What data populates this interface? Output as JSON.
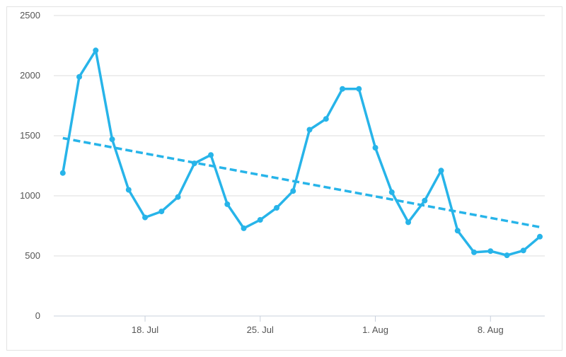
{
  "chart_data": {
    "type": "line",
    "title": "",
    "xlabel": "",
    "ylabel": "",
    "ylim": [
      0,
      2500
    ],
    "yticks": [
      0,
      500,
      1000,
      1500,
      2000,
      2500
    ],
    "xticks": [
      {
        "label": "18. Jul",
        "day": 18
      },
      {
        "label": "25. Jul",
        "day": 25
      },
      {
        "label": "1. Aug",
        "day": 32
      },
      {
        "label": "8. Aug",
        "day": 39
      }
    ],
    "grid": true,
    "legend": "none",
    "colors": {
      "series": "#27b4e9",
      "trend": "#27b4e9",
      "grid": "#dcdcdc",
      "axis": "#c8d0dc"
    },
    "series": [
      {
        "values": [
          {
            "day": 13,
            "y": 1190
          },
          {
            "day": 14,
            "y": 1990
          },
          {
            "day": 15,
            "y": 2210
          },
          {
            "day": 16,
            "y": 1470
          },
          {
            "day": 17,
            "y": 1050
          },
          {
            "day": 18,
            "y": 820
          },
          {
            "day": 19,
            "y": 870
          },
          {
            "day": 20,
            "y": 990
          },
          {
            "day": 21,
            "y": 1270
          },
          {
            "day": 22,
            "y": 1340
          },
          {
            "day": 23,
            "y": 930
          },
          {
            "day": 24,
            "y": 730
          },
          {
            "day": 25,
            "y": 800
          },
          {
            "day": 26,
            "y": 900
          },
          {
            "day": 27,
            "y": 1040
          },
          {
            "day": 28,
            "y": 1550
          },
          {
            "day": 29,
            "y": 1640
          },
          {
            "day": 30,
            "y": 1890
          },
          {
            "day": 31,
            "y": 1890
          },
          {
            "day": 32,
            "y": 1400
          },
          {
            "day": 33,
            "y": 1030
          },
          {
            "day": 34,
            "y": 780
          },
          {
            "day": 35,
            "y": 960
          },
          {
            "day": 36,
            "y": 1210
          },
          {
            "day": 37,
            "y": 710
          },
          {
            "day": 38,
            "y": 530
          },
          {
            "day": 39,
            "y": 540
          },
          {
            "day": 40,
            "y": 505
          },
          {
            "day": 41,
            "y": 545
          },
          {
            "day": 42,
            "y": 660
          }
        ]
      }
    ],
    "trendline": {
      "from": {
        "day": 13,
        "y": 1480
      },
      "to": {
        "day": 42,
        "y": 740
      }
    }
  }
}
